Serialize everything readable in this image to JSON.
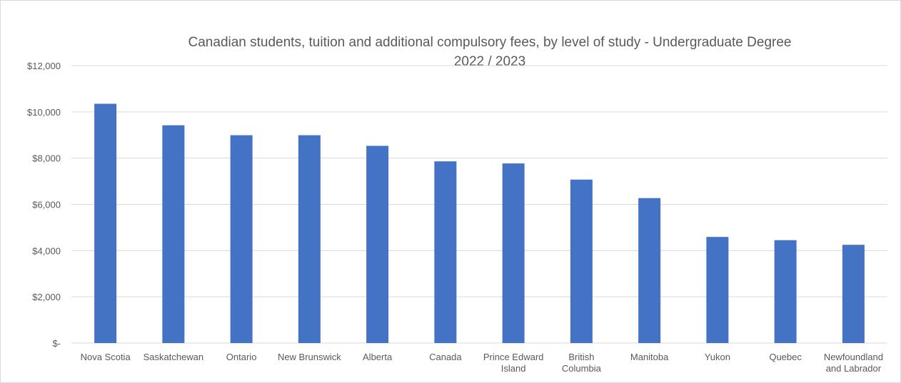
{
  "chart_data": {
    "type": "bar",
    "title": "Canadian students, tuition and additional compulsory fees, by level of study  - Undergraduate Degree",
    "subtitle": "2022 / 2023",
    "xlabel": "",
    "ylabel": "",
    "ylim": [
      0,
      12000
    ],
    "y_ticks": [
      {
        "value": 12000,
        "label": "$12,000"
      },
      {
        "value": 10000,
        "label": "$10,000"
      },
      {
        "value": 8000,
        "label": "$8,000"
      },
      {
        "value": 6000,
        "label": "$6,000"
      },
      {
        "value": 4000,
        "label": "$4,000"
      },
      {
        "value": 2000,
        "label": "$2,000"
      },
      {
        "value": 0,
        "label": "$-"
      }
    ],
    "categories": [
      "Nova Scotia",
      "Saskatchewan",
      "Ontario",
      "New Brunswick",
      "Alberta",
      "Canada",
      "Prince Edward Island",
      "British Columbia",
      "Manitoba",
      "Yukon",
      "Quebec",
      "Newfoundland and Labrador"
    ],
    "category_lines": [
      [
        "Nova Scotia"
      ],
      [
        "Saskatchewan"
      ],
      [
        "Ontario"
      ],
      [
        "New Brunswick"
      ],
      [
        "Alberta"
      ],
      [
        "Canada"
      ],
      [
        "Prince Edward",
        "Island"
      ],
      [
        "British",
        "Columbia"
      ],
      [
        "Manitoba"
      ],
      [
        "Yukon"
      ],
      [
        "Quebec"
      ],
      [
        "Newfoundland",
        "and Labrador"
      ]
    ],
    "values": [
      10350,
      9420,
      8990,
      8990,
      8530,
      7860,
      7770,
      7070,
      6270,
      4590,
      4450,
      4250
    ],
    "grid": true,
    "legend": "none",
    "colors": {
      "bar": "#4472C4",
      "grid": "#d9d9d9",
      "text": "#595959"
    }
  }
}
